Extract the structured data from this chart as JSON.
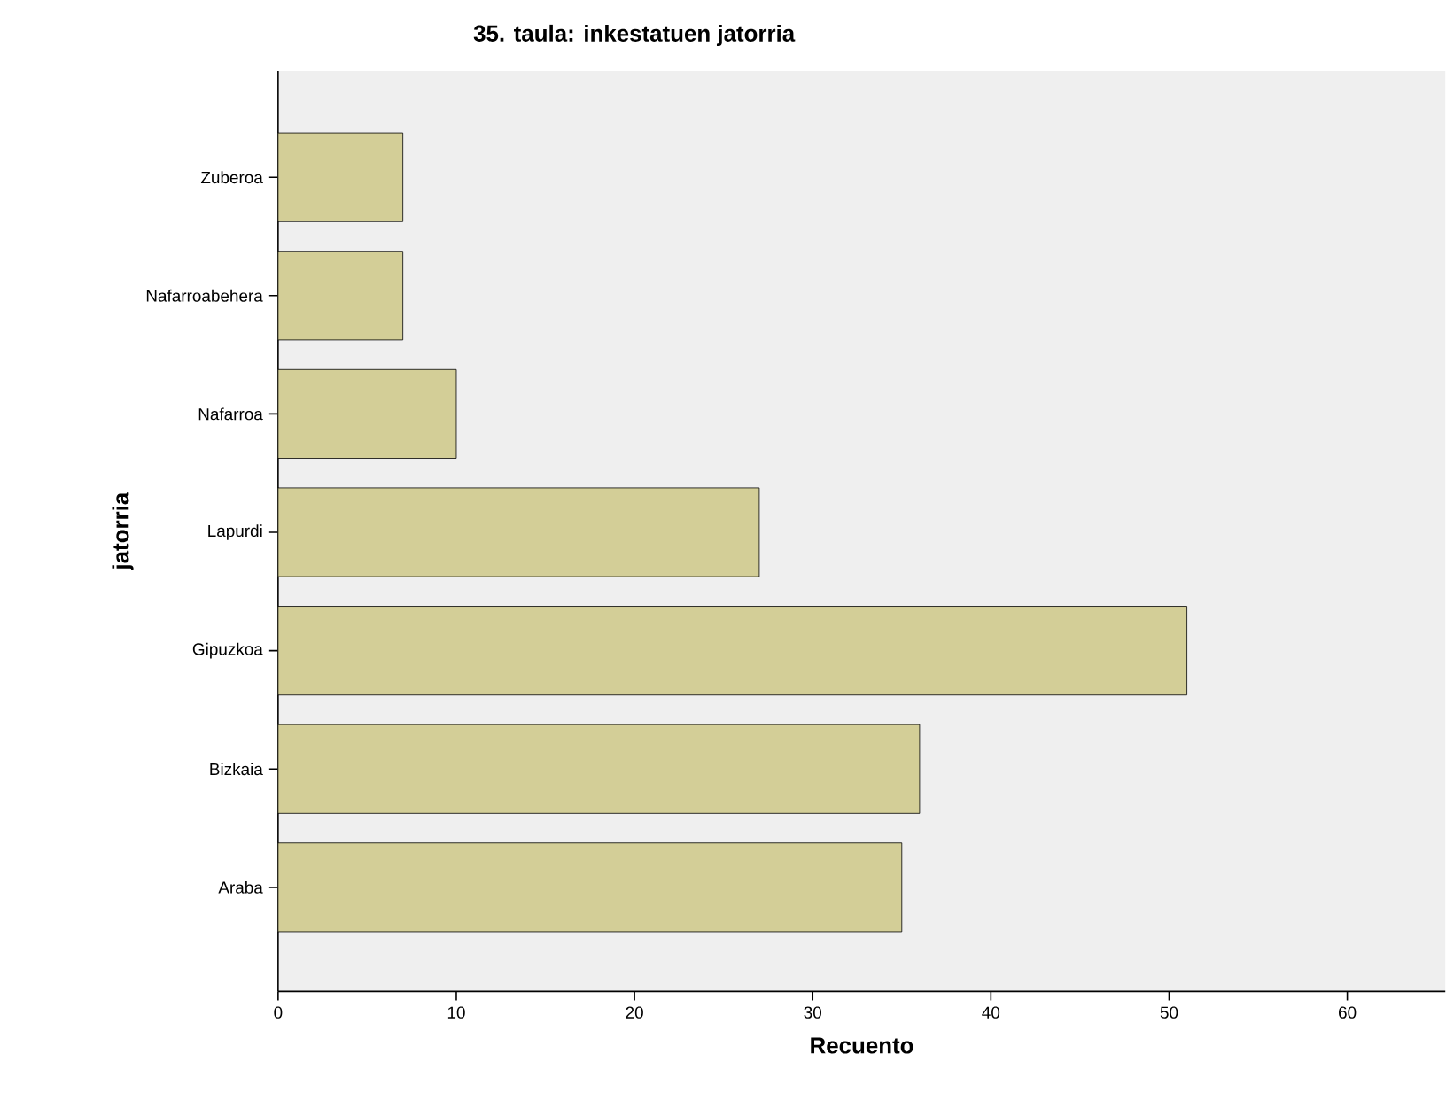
{
  "chart_data": {
    "type": "bar",
    "orientation": "horizontal",
    "title": "35. taula: inkestatuen jatorria",
    "xlabel": "Recuento",
    "ylabel": "jatorria",
    "categories": [
      "Zuberoa",
      "Nafarroabehera",
      "Nafarroa",
      "Lapurdi",
      "Gipuzkoa",
      "Bizkaia",
      "Araba"
    ],
    "values": [
      7,
      7,
      10,
      27,
      51,
      36,
      35
    ],
    "color": "#d3ce97",
    "xlim": [
      0,
      65.5
    ],
    "xticks": [
      0,
      10,
      20,
      30,
      40,
      50,
      60
    ]
  }
}
